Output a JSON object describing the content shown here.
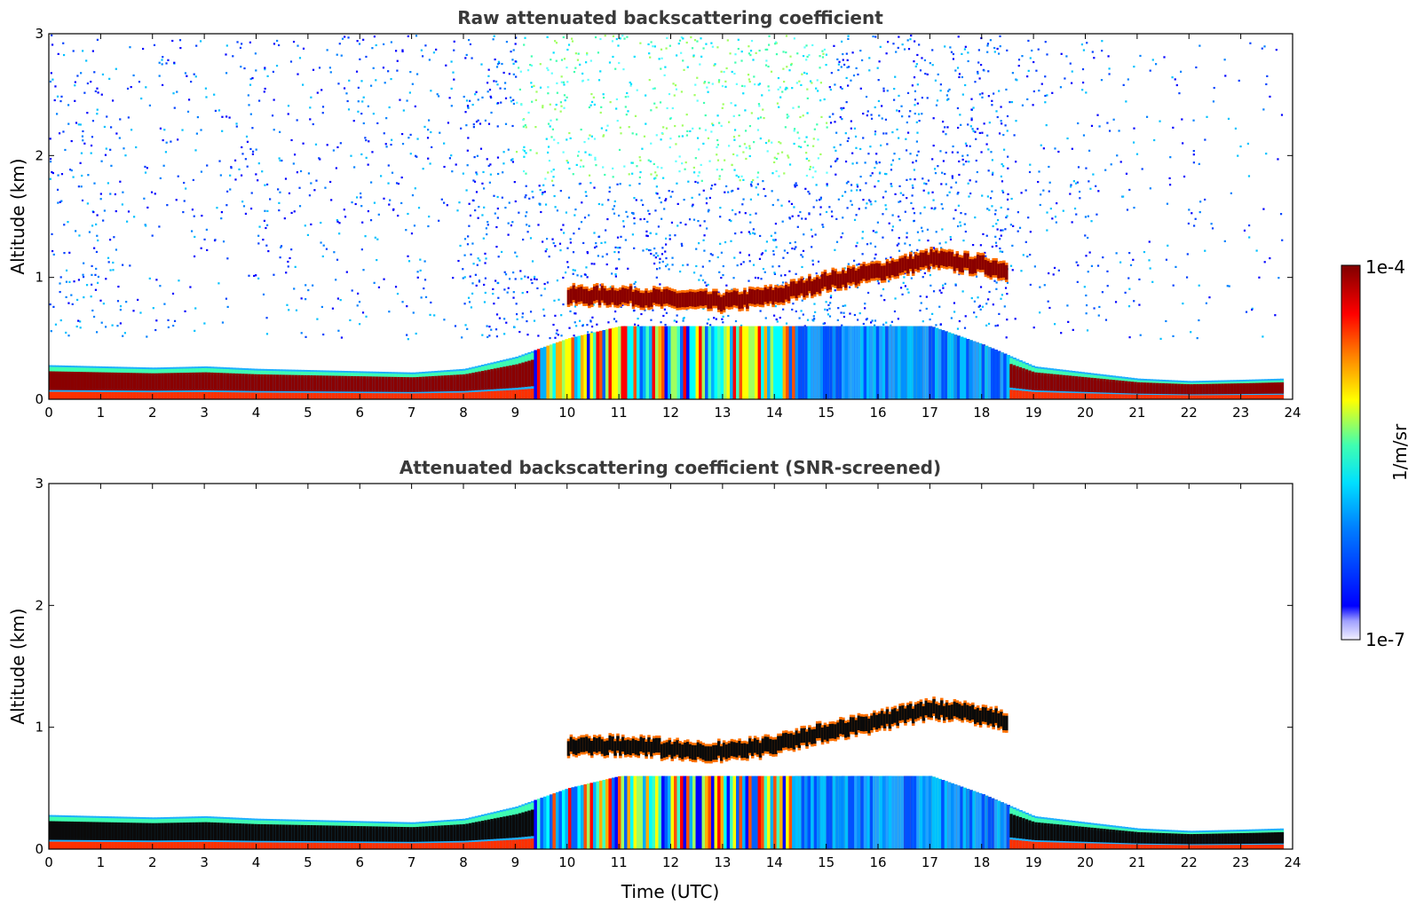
{
  "chart_data": [
    {
      "type": "heatmap",
      "title": "Raw attenuated backscattering coefficient",
      "xlabel": "",
      "ylabel": "Altitude (km)",
      "xlim": [
        0,
        24
      ],
      "ylim": [
        0,
        3
      ],
      "xticks": [
        "0",
        "1",
        "2",
        "3",
        "4",
        "5",
        "6",
        "7",
        "8",
        "9",
        "10",
        "11",
        "12",
        "13",
        "14",
        "15",
        "16",
        "17",
        "18",
        "19",
        "20",
        "21",
        "22",
        "23",
        "24"
      ],
      "yticks": [
        "0",
        "1",
        "2",
        "3"
      ],
      "layers": [
        {
          "name": "boundary layer",
          "x": [
            0,
            1,
            2,
            3,
            4,
            5,
            6,
            7,
            8,
            9,
            10,
            11,
            12,
            13,
            14,
            15,
            16,
            17,
            18,
            19,
            20,
            21,
            22,
            23,
            23.8
          ],
          "top_km": [
            0.28,
            0.27,
            0.26,
            0.27,
            0.25,
            0.24,
            0.23,
            0.22,
            0.25,
            0.35,
            0.5,
            0.6,
            0.6,
            0.6,
            0.6,
            0.6,
            0.6,
            0.6,
            0.45,
            0.27,
            0.22,
            0.17,
            0.15,
            0.16,
            0.17
          ]
        },
        {
          "name": "cloud layer",
          "x": [
            10,
            11,
            12,
            13,
            14,
            15,
            16,
            17,
            18,
            18.5
          ],
          "alt_km": [
            0.85,
            0.85,
            0.82,
            0.8,
            0.85,
            0.97,
            1.05,
            1.15,
            1.1,
            1.05
          ]
        }
      ],
      "noise": "scattered above 0.5 km, strongest between 9 and 17 UTC"
    },
    {
      "type": "heatmap",
      "title": "Attenuated backscattering coefficient (SNR-screened)",
      "xlabel": "Time (UTC)",
      "ylabel": "Altitude (km)",
      "xlim": [
        0,
        24
      ],
      "ylim": [
        0,
        3
      ],
      "xticks": [
        "0",
        "1",
        "2",
        "3",
        "4",
        "5",
        "6",
        "7",
        "8",
        "9",
        "10",
        "11",
        "12",
        "13",
        "14",
        "15",
        "16",
        "17",
        "18",
        "19",
        "20",
        "21",
        "22",
        "23",
        "24"
      ],
      "yticks": [
        "0",
        "1",
        "2",
        "3"
      ],
      "layers": [
        {
          "name": "boundary layer",
          "x": [
            0,
            1,
            2,
            3,
            4,
            5,
            6,
            7,
            8,
            9,
            10,
            11,
            12,
            13,
            14,
            15,
            16,
            17,
            18,
            19,
            20,
            21,
            22,
            23,
            23.8
          ],
          "top_km": [
            0.28,
            0.27,
            0.26,
            0.27,
            0.25,
            0.24,
            0.23,
            0.22,
            0.25,
            0.35,
            0.5,
            0.6,
            0.6,
            0.6,
            0.6,
            0.6,
            0.6,
            0.6,
            0.45,
            0.27,
            0.22,
            0.17,
            0.15,
            0.16,
            0.17
          ]
        },
        {
          "name": "cloud layer",
          "x": [
            10,
            11,
            12,
            13,
            14,
            15,
            16,
            17,
            18,
            18.5
          ],
          "alt_km": [
            0.85,
            0.85,
            0.82,
            0.8,
            0.85,
            0.97,
            1.05,
            1.15,
            1.1,
            1.05
          ]
        }
      ],
      "noise": "screened out (mostly white)"
    }
  ],
  "colorbar": {
    "label": "1/m/sr",
    "max_label": "1e-4",
    "min_label": "1e-7",
    "scale": "log",
    "colormap": "jet",
    "stops": [
      "#e6e6fa",
      "#0000ff",
      "#00ffff",
      "#ffff00",
      "#ff0000",
      "#800000"
    ]
  }
}
